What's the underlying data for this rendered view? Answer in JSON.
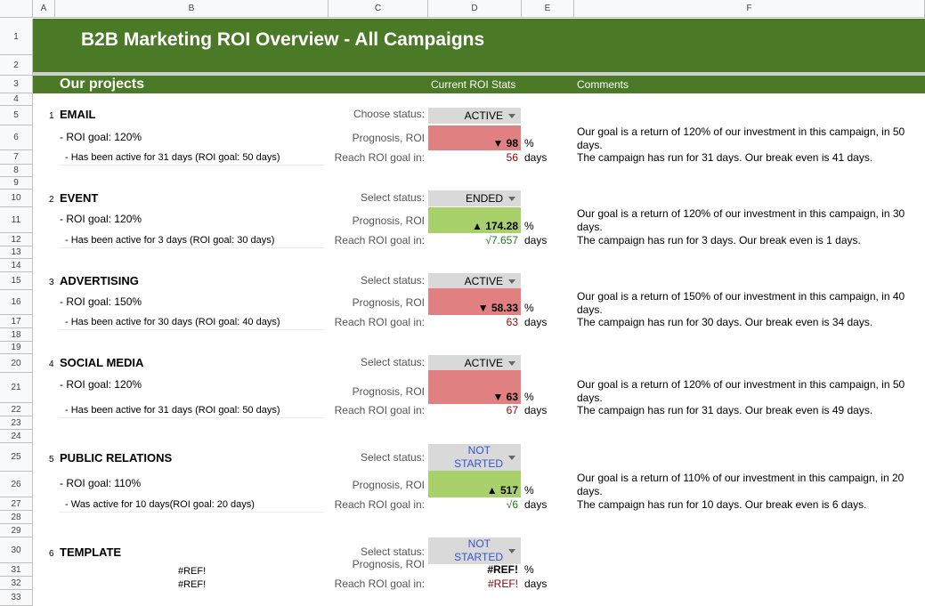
{
  "columns": [
    "A",
    "B",
    "C",
    "D",
    "E",
    "F"
  ],
  "rows": [
    "1",
    "2",
    "3",
    "4",
    "5",
    "6",
    "7",
    "8",
    "9",
    "10",
    "11",
    "12",
    "13",
    "14",
    "15",
    "16",
    "17",
    "18",
    "19",
    "20",
    "21",
    "22",
    "23",
    "24",
    "25",
    "26",
    "27",
    "28",
    "29",
    "30",
    "31",
    "32",
    "33"
  ],
  "title": "B2B Marketing ROI Overview - All Campaigns",
  "section_title": "Our projects",
  "col_headers": {
    "stats": "Current ROI Stats",
    "comments": "Comments"
  },
  "colors": {
    "header_green": "#4a7a26",
    "bad": "#e08080",
    "good": "#a9d16b",
    "pill": "#d9d9d9"
  },
  "campaigns": [
    {
      "num": "1",
      "name": "EMAIL",
      "status_label": "Choose status:",
      "status": "ACTIVE",
      "roi_goal": "- ROI goal: 120%",
      "active_text": "- Has been active for 31 days (ROI goal: 50 days)",
      "prognosis_label": "Prognosis, ROI",
      "trend_icon": "down-triangle",
      "prognosis": "▼ 98",
      "percent": "%",
      "reach_label": "Reach ROI goal in:",
      "reach_value": "56",
      "days": "days",
      "comment1": "Our goal is a return of 120% of our investment in this campaign, in 50",
      "comment1b": "days.",
      "comment2": "The campaign has run for 31 days. Our break even is 41 days."
    },
    {
      "num": "2",
      "name": "EVENT",
      "status_label": "Select status:",
      "status": "ENDED",
      "roi_goal": "- ROI goal: 120%",
      "active_text": "- Has been active for 3 days (ROI goal: 30 days)",
      "prognosis_label": "Prognosis, ROI",
      "trend_icon": "up-triangle",
      "prognosis": "▲ 174.28",
      "percent": "%",
      "reach_label": "Reach ROI goal in:",
      "reach_value": "√7.657",
      "days": "days",
      "comment1": "Our goal is a return of 120% of our investment in this campaign, in 30",
      "comment1b": "days.",
      "comment2": "The campaign has run for 3 days. Our break even is 1 days."
    },
    {
      "num": "3",
      "name": "ADVERTISING",
      "status_label": "Select status:",
      "status": "ACTIVE",
      "roi_goal": "- ROI goal: 150%",
      "active_text": "- Has been active for  30 days (ROI goal: 40 days)",
      "prognosis_label": "Prognosis, ROI",
      "trend_icon": "down-triangle",
      "prognosis": "▼ 58.33",
      "percent": "%",
      "reach_label": "Reach ROI goal in:",
      "reach_value": "63",
      "days": "days",
      "comment1": "Our goal is a return of 150% of our investment in this campaign, in 40",
      "comment1b": "days.",
      "comment2": "The campaign has run for 30 days. Our break even is 34 days."
    },
    {
      "num": "4",
      "name": "SOCIAL MEDIA",
      "status_label": "Select status:",
      "status": "ACTIVE",
      "roi_goal": "- ROI goal: 120%",
      "active_text": "- Has been active for 31 days (ROI goal: 50 days)",
      "prognosis_label": "Prognosis, ROI",
      "trend_icon": "down-triangle",
      "prognosis": "▼ 63",
      "percent": "%",
      "reach_label": "Reach ROI goal in:",
      "reach_value": "67",
      "days": "days",
      "comment1": "Our goal is a return of 120% of our investment in this campaign, in 50",
      "comment1b": "days.",
      "comment2": "The campaign has run for 31 days. Our break even is 49 days."
    },
    {
      "num": "5",
      "name": "PUBLIC RELATIONS",
      "status_label": "Select status:",
      "status_line1": "NOT",
      "status_line2": "STARTED",
      "roi_goal": "- ROI goal: 110%",
      "active_text": "- Was active for 10 days(ROI goal: 20 days)",
      "prognosis_label": "Prognosis, ROI",
      "trend_icon": "up-triangle",
      "prognosis": "▲ 517",
      "percent": "%",
      "reach_label": "Reach ROI goal in:",
      "reach_value": "√6",
      "days": "days",
      "comment1": "Our goal is a return of 110% of our investment in this campaign, in 20",
      "comment1b": "days.",
      "comment2": "The campaign has run for 10 days. Our break even is 6 days."
    },
    {
      "num": "6",
      "name": "TEMPLATE",
      "status_label": "Select status:",
      "status_line1": "NOT",
      "status_line2": "STARTED",
      "ref1": "#REF!",
      "ref2": "#REF!",
      "prognosis_label": "Prognosis, ROI",
      "prognosis": "#REF!",
      "percent": "%",
      "reach_label": "Reach ROI goal in:",
      "reach_value": "#REF!",
      "days": "days"
    }
  ]
}
